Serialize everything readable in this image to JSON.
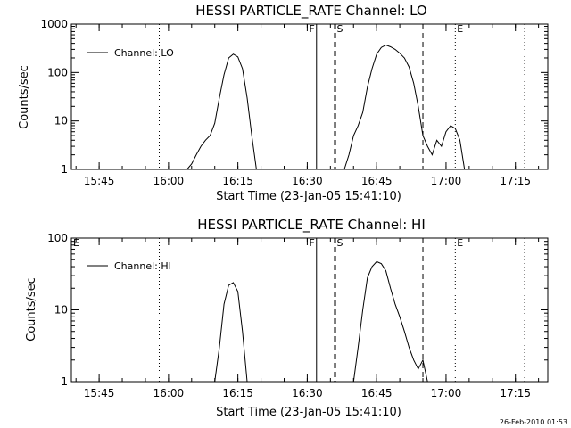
{
  "chart_data": [
    {
      "type": "line",
      "title": "HESSI PARTICLE_RATE Channel: LO",
      "xlabel": "Start Time (23-Jan-05 15:41:10)",
      "ylabel": "Counts/sec",
      "y_scale": "log",
      "ylim": [
        1,
        1000
      ],
      "y_ticks": [
        1,
        10,
        100,
        1000
      ],
      "y_tick_labels": [
        "1",
        "10",
        "100",
        "1000"
      ],
      "xlim": [
        "15:39",
        "17:22"
      ],
      "x_ticks": [
        "15:45",
        "16:00",
        "16:15",
        "16:30",
        "16:45",
        "17:00",
        "17:15"
      ],
      "legend": "top-left",
      "series": [
        {
          "name": "Channel: LO",
          "points": [
            [
              "16:04",
              1
            ],
            [
              "16:05",
              1.3
            ],
            [
              "16:06",
              2
            ],
            [
              "16:07",
              3
            ],
            [
              "16:08",
              4
            ],
            [
              "16:09",
              5
            ],
            [
              "16:10",
              9
            ],
            [
              "16:11",
              30
            ],
            [
              "16:12",
              90
            ],
            [
              "16:13",
              200
            ],
            [
              "16:14",
              240
            ],
            [
              "16:15",
              210
            ],
            [
              "16:16",
              120
            ],
            [
              "16:17",
              30
            ],
            [
              "16:18",
              5
            ],
            [
              "16:19",
              1
            ],
            [
              "16:38",
              1
            ],
            [
              "16:39",
              2
            ],
            [
              "16:40",
              5
            ],
            [
              "16:41",
              8
            ],
            [
              "16:42",
              15
            ],
            [
              "16:43",
              50
            ],
            [
              "16:44",
              120
            ],
            [
              "16:45",
              240
            ],
            [
              "16:46",
              330
            ],
            [
              "16:47",
              370
            ],
            [
              "16:48",
              340
            ],
            [
              "16:49",
              300
            ],
            [
              "16:50",
              250
            ],
            [
              "16:51",
              200
            ],
            [
              "16:52",
              130
            ],
            [
              "16:53",
              60
            ],
            [
              "16:54",
              20
            ],
            [
              "16:55",
              5
            ],
            [
              "16:56",
              3
            ],
            [
              "16:57",
              2
            ],
            [
              "16:58",
              4
            ],
            [
              "16:59",
              3
            ],
            [
              "17:00",
              6
            ],
            [
              "17:01",
              8
            ],
            [
              "17:02",
              7
            ],
            [
              "17:03",
              4
            ],
            [
              "17:04",
              1
            ]
          ]
        }
      ],
      "markers": [
        {
          "label": "F",
          "time": "16:32",
          "style": "solid"
        },
        {
          "label": "S",
          "time": "16:36",
          "style": "dashed"
        },
        {
          "label": "E",
          "time": "17:02",
          "style": "dotted"
        }
      ],
      "extra_lines": [
        {
          "time": "15:58",
          "style": "dotted"
        },
        {
          "time": "16:55",
          "style": "dashed"
        },
        {
          "time": "17:17",
          "style": "dotted"
        }
      ]
    },
    {
      "type": "line",
      "title": "HESSI PARTICLE_RATE Channel: HI",
      "xlabel": "Start Time (23-Jan-05 15:41:10)",
      "ylabel": "Counts/sec",
      "y_scale": "log",
      "ylim": [
        1,
        100
      ],
      "y_ticks": [
        1,
        10,
        100
      ],
      "y_tick_labels": [
        "1",
        "10",
        "100"
      ],
      "xlim": [
        "15:39",
        "17:22"
      ],
      "x_ticks": [
        "15:45",
        "16:00",
        "16:15",
        "16:30",
        "16:45",
        "17:00",
        "17:15"
      ],
      "legend": "top-left",
      "series": [
        {
          "name": "Channel: HI",
          "points": [
            [
              "16:10",
              1
            ],
            [
              "16:11",
              3
            ],
            [
              "16:12",
              12
            ],
            [
              "16:13",
              22
            ],
            [
              "16:14",
              24
            ],
            [
              "16:15",
              18
            ],
            [
              "16:16",
              5
            ],
            [
              "16:17",
              1
            ],
            [
              "16:40",
              1
            ],
            [
              "16:41",
              3
            ],
            [
              "16:42",
              10
            ],
            [
              "16:43",
              28
            ],
            [
              "16:44",
              40
            ],
            [
              "16:45",
              47
            ],
            [
              "16:46",
              44
            ],
            [
              "16:47",
              35
            ],
            [
              "16:48",
              20
            ],
            [
              "16:49",
              12
            ],
            [
              "16:50",
              8
            ],
            [
              "16:51",
              5
            ],
            [
              "16:52",
              3
            ],
            [
              "16:53",
              2
            ],
            [
              "16:54",
              1.5
            ],
            [
              "16:55",
              2
            ],
            [
              "16:56",
              1
            ]
          ]
        }
      ],
      "markers": [
        {
          "label": "E",
          "time": "15:39",
          "style": "none"
        },
        {
          "label": "F",
          "time": "16:32",
          "style": "solid"
        },
        {
          "label": "S",
          "time": "16:36",
          "style": "dashed"
        },
        {
          "label": "E",
          "time": "17:02",
          "style": "dotted"
        }
      ],
      "extra_lines": [
        {
          "time": "15:58",
          "style": "dotted"
        },
        {
          "time": "16:55",
          "style": "dashed"
        },
        {
          "time": "17:17",
          "style": "dotted"
        }
      ]
    }
  ],
  "timestamp": "26-Feb-2010 01:53"
}
